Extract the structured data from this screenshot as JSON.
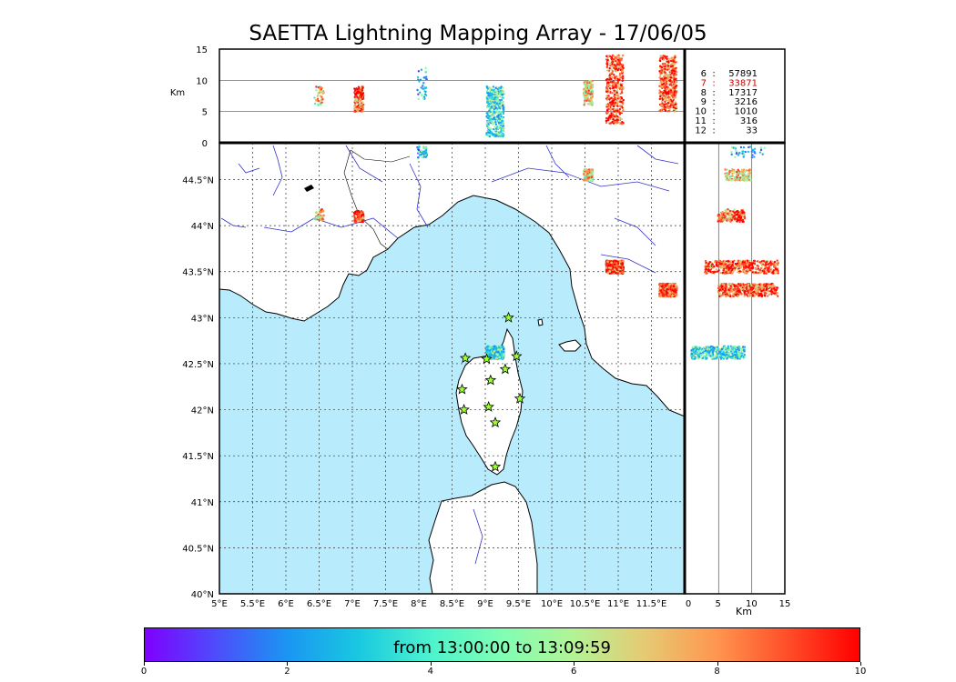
{
  "title": "SAETTA Lightning Mapping Array - 17/06/05",
  "altitude_panel": {
    "ylabel": "Km",
    "yticks": [
      "15",
      "10",
      "5",
      "0"
    ]
  },
  "right_panel": {
    "xlabel": "Km",
    "xticks": [
      "0",
      "5",
      "10",
      "15"
    ]
  },
  "map": {
    "lon_ticks": [
      "5°E",
      "5.5°E",
      "6°E",
      "6.5°E",
      "7°E",
      "7.5°E",
      "8°E",
      "8.5°E",
      "9°E",
      "9.5°E",
      "10°E",
      "10.5°E",
      "11°E",
      "11.5°E"
    ],
    "lat_ticks": [
      "44.5°N",
      "44°N",
      "43.5°N",
      "43°N",
      "42.5°N",
      "42°N",
      "41.5°N",
      "41°N",
      "40.5°N",
      "40°N"
    ],
    "sea_color": "#b8ecfc",
    "land_color": "#ffffff",
    "river_color": "#3333cc",
    "station_icon": "star-icon",
    "station_color": "#9cff2e",
    "stations": [
      {
        "lon": 9.35,
        "lat": 43.0
      },
      {
        "lon": 8.7,
        "lat": 42.56
      },
      {
        "lon": 9.02,
        "lat": 42.55
      },
      {
        "lon": 9.47,
        "lat": 42.58
      },
      {
        "lon": 9.3,
        "lat": 42.44
      },
      {
        "lon": 9.08,
        "lat": 42.32
      },
      {
        "lon": 8.65,
        "lat": 42.22
      },
      {
        "lon": 9.52,
        "lat": 42.12
      },
      {
        "lon": 8.68,
        "lat": 42.0
      },
      {
        "lon": 9.05,
        "lat": 42.03
      },
      {
        "lon": 9.15,
        "lat": 41.86
      },
      {
        "lon": 9.15,
        "lat": 41.38
      }
    ]
  },
  "altitude_counts": [
    {
      "alt": "6",
      "count": "57891",
      "color": "#000000"
    },
    {
      "alt": "7",
      "count": "33871",
      "color": "#cc0000"
    },
    {
      "alt": "8",
      "count": "17317",
      "color": "#000000"
    },
    {
      "alt": "9",
      "count": "3216",
      "color": "#000000"
    },
    {
      "alt": "10",
      "count": "1010",
      "color": "#000000"
    },
    {
      "alt": "11",
      "count": "316",
      "color": "#000000"
    },
    {
      "alt": "12",
      "count": "33",
      "color": "#000000"
    }
  ],
  "colorbar": {
    "label": "from 13:00:00 to 13:09:59",
    "ticks": [
      "0",
      "2",
      "4",
      "6",
      "8",
      "10"
    ]
  },
  "clusters": [
    {
      "lon": 8.05,
      "lat": 44.8,
      "altmin": 7,
      "altmax": 12,
      "density": "low",
      "time": 3
    },
    {
      "lon": 6.5,
      "lat": 44.12,
      "altmin": 6,
      "altmax": 9,
      "density": "low",
      "time": 7
    },
    {
      "lon": 7.1,
      "lat": 44.1,
      "altmin": 5,
      "altmax": 9,
      "density": "med",
      "time": 9
    },
    {
      "lon": 9.15,
      "lat": 42.62,
      "altmin": 1,
      "altmax": 9,
      "density": "high",
      "time": 4
    },
    {
      "lon": 10.55,
      "lat": 44.55,
      "altmin": 6,
      "altmax": 10,
      "density": "med",
      "time": 7
    },
    {
      "lon": 10.95,
      "lat": 43.55,
      "altmin": 3,
      "altmax": 14,
      "density": "high",
      "time": 9
    },
    {
      "lon": 11.75,
      "lat": 43.3,
      "altmin": 5,
      "altmax": 14,
      "density": "high",
      "time": 9
    }
  ]
}
